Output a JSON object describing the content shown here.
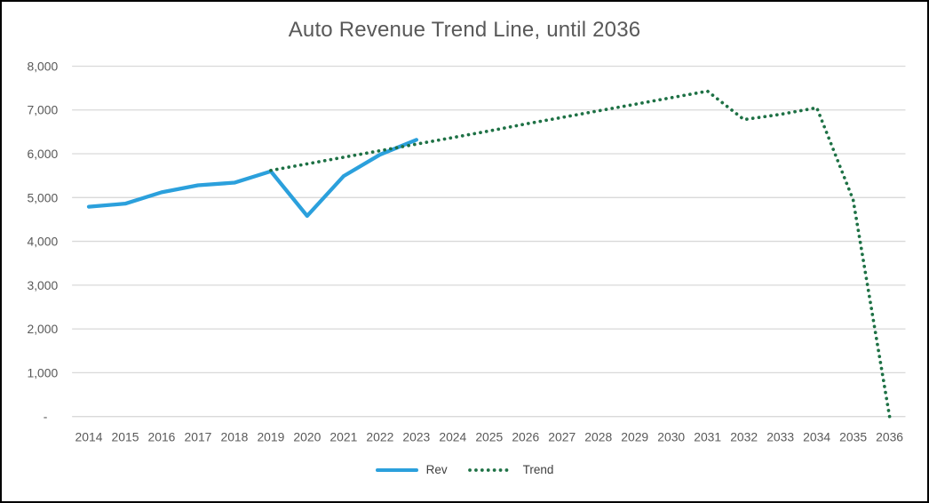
{
  "window": {
    "background_color": "#ffffff",
    "border_color": "#000000"
  },
  "chart": {
    "title": "Auto Revenue Trend Line, until 2036",
    "title_color": "#595959",
    "axis_label_color": "#595959",
    "gridline_color": "#d9d9d9",
    "legend": {
      "items": [
        {
          "label": "Rev"
        },
        {
          "label": "Trend"
        }
      ]
    }
  },
  "chart_data": {
    "type": "line",
    "title": "Auto Revenue Trend Line, until 2036",
    "categories": [
      "2014",
      "2015",
      "2016",
      "2017",
      "2018",
      "2019",
      "2020",
      "2021",
      "2022",
      "2023",
      "2024",
      "2025",
      "2026",
      "2027",
      "2028",
      "2029",
      "2030",
      "2031",
      "2032",
      "2033",
      "2034",
      "2035",
      "2036"
    ],
    "series": [
      {
        "name": "Rev",
        "color": "#2BA0DC",
        "style": "solid",
        "values": [
          4790,
          4860,
          5120,
          5280,
          5340,
          5600,
          4580,
          5490,
          5980,
          6320,
          null,
          null,
          null,
          null,
          null,
          null,
          null,
          null,
          null,
          null,
          null,
          null,
          null
        ]
      },
      {
        "name": "Trend",
        "color": "#1E7145",
        "style": "dotted",
        "values": [
          null,
          null,
          null,
          null,
          null,
          5620,
          5770,
          5920,
          6070,
          6220,
          6370,
          6520,
          6680,
          6830,
          6980,
          7130,
          7280,
          7430,
          6780,
          6900,
          7050,
          4950,
          0
        ]
      }
    ],
    "xlabel": "",
    "ylabel": "",
    "ylim": [
      0,
      8000
    ],
    "y_ticks": [
      0,
      1000,
      2000,
      3000,
      4000,
      5000,
      6000,
      7000,
      8000
    ],
    "y_tick_labels": [
      "-",
      "1,000",
      "2,000",
      "3,000",
      "4,000",
      "5,000",
      "6,000",
      "7,000",
      "8,000"
    ],
    "grid": true,
    "legend_position": "bottom"
  }
}
